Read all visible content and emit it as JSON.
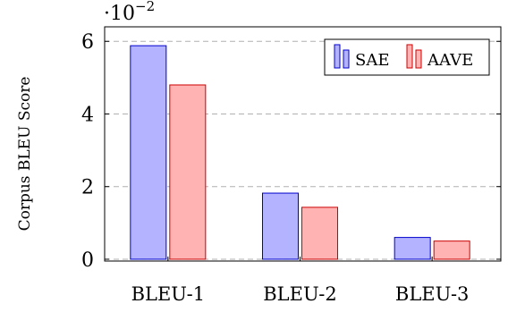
{
  "chart_data": {
    "type": "bar",
    "categories": [
      "BLEU-1",
      "BLEU-2",
      "BLEU-3"
    ],
    "series": [
      {
        "name": "SAE",
        "values": [
          5.88,
          1.82,
          0.6
        ],
        "fill": "#b3b3ff",
        "stroke": "#0000cc"
      },
      {
        "name": "AAVE",
        "values": [
          4.8,
          1.43,
          0.5
        ],
        "fill": "#ffb3b3",
        "stroke": "#cc0000"
      }
    ],
    "ylabel": "Corpus BLEU Score",
    "xlabel": "",
    "ylim": [
      -0.05,
      6.4
    ],
    "yticks": [
      0,
      2,
      4,
      6
    ],
    "y_scale_label": "·10",
    "y_scale_exponent": "−2",
    "grid": "horizontal dashed",
    "legend_position": "top-right"
  }
}
